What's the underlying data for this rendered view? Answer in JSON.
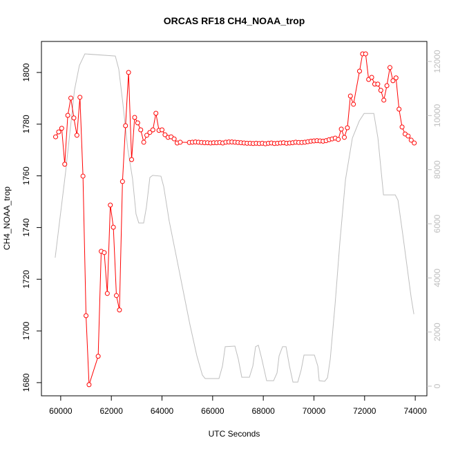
{
  "chart_data": {
    "type": "line",
    "title": "ORCAS RF18 CH4_NOAA_trop",
    "x_label": "UTC Seconds",
    "y_label": "CH4_NOAA_trop",
    "xlim": [
      59240,
      74460
    ],
    "ylim": [
      1674.9,
      1812.0
    ],
    "y2lim": [
      -357,
      12740
    ],
    "xticks": [
      60000,
      62000,
      64000,
      66000,
      68000,
      70000,
      72000,
      74000
    ],
    "yticks": [
      1680,
      1700,
      1720,
      1740,
      1760,
      1780,
      1800
    ],
    "y2ticks": [
      0,
      2000,
      4000,
      6000,
      8000,
      10000,
      12000
    ],
    "series": [
      {
        "color": "#bebebe",
        "axis": "y2",
        "marker": "none",
        "x": [
          59782,
          60191,
          60546,
          60737,
          60955,
          62156,
          62293,
          62456,
          62647,
          62838,
          62975,
          63084,
          63275,
          63384,
          63521,
          63630,
          63958,
          64067,
          64285,
          64558,
          64831,
          65104,
          65377,
          65595,
          65704,
          66250,
          66387,
          66496,
          66878,
          67014,
          67151,
          67451,
          67587,
          67696,
          67806,
          67942,
          68133,
          68406,
          68543,
          68624,
          68761,
          68897,
          69034,
          69170,
          69362,
          69498,
          69607,
          70017,
          70153,
          70207,
          70426,
          70535,
          70644,
          70836,
          71026,
          71245,
          71518,
          71790,
          71981,
          72364,
          72527,
          72746,
          72882,
          73210,
          73319,
          73510,
          73728,
          73837,
          73946
        ],
        "values": [
          4749,
          7890,
          10950,
          11850,
          12280,
          12200,
          11720,
          10440,
          8780,
          7660,
          6360,
          6030,
          6030,
          6610,
          7710,
          7790,
          7760,
          7380,
          6100,
          4830,
          3550,
          2270,
          1120,
          410,
          280,
          280,
          740,
          1460,
          1480,
          1000,
          330,
          330,
          740,
          1460,
          1510,
          1000,
          200,
          200,
          490,
          1120,
          1460,
          1460,
          740,
          150,
          150,
          610,
          1150,
          1150,
          740,
          200,
          180,
          310,
          1000,
          3040,
          5340,
          7630,
          9170,
          9800,
          10080,
          10080,
          9170,
          7070,
          7070,
          7070,
          6870,
          5590,
          4060,
          3290,
          2660
        ]
      },
      {
        "color": "#ff0000",
        "marker": "circle",
        "x": [
          59800,
          59920,
          60040,
          60160,
          60280,
          60400,
          60520,
          60640,
          60760,
          60880,
          61000,
          61120,
          61480,
          61600,
          61720,
          61840,
          61960,
          62080,
          62200,
          62320,
          62440,
          62560,
          62680,
          62800,
          62920,
          63040,
          63160,
          63280,
          63400,
          63520,
          63640,
          63760,
          63880,
          64000,
          64120,
          64240,
          64360,
          64480,
          64600,
          64720,
          65080,
          65200,
          65320,
          65440,
          65560,
          65680,
          65800,
          65920,
          66040,
          66160,
          66280,
          66400,
          66520,
          66640,
          66760,
          66880,
          67000,
          67120,
          67240,
          67360,
          67480,
          67600,
          67720,
          67840,
          67960,
          68080,
          68200,
          68320,
          68440,
          68560,
          68680,
          68800,
          68920,
          69040,
          69160,
          69280,
          69400,
          69520,
          69640,
          69760,
          69880,
          70000,
          70120,
          70240,
          70360,
          70480,
          70600,
          70720,
          70840,
          70960,
          71080,
          71200,
          71320,
          71440,
          71560,
          71800,
          71920,
          72040,
          72160,
          72280,
          72400,
          72520,
          72640,
          72760,
          72880,
          73000,
          73120,
          73240,
          73360,
          73480,
          73600,
          73720,
          73840,
          73960
        ],
        "values": [
          1775.1,
          1777.0,
          1778.4,
          1764.5,
          1783.4,
          1790.1,
          1782.4,
          1775.7,
          1790.4,
          1759.9,
          1705.9,
          1679.2,
          1690.2,
          1730.8,
          1730.3,
          1714.5,
          1748.7,
          1740.1,
          1713.7,
          1708.1,
          1757.8,
          1779.4,
          1800.0,
          1766.3,
          1782.6,
          1780.5,
          1777.8,
          1773.0,
          1775.7,
          1776.8,
          1777.8,
          1784.2,
          1777.6,
          1777.8,
          1775.9,
          1774.9,
          1775.1,
          1774.3,
          1772.7,
          1773.0,
          1772.9,
          1773.0,
          1773.1,
          1773.0,
          1772.9,
          1772.8,
          1772.8,
          1772.7,
          1772.8,
          1772.8,
          1772.9,
          1772.7,
          1773.0,
          1773.1,
          1773.1,
          1773.0,
          1772.9,
          1772.8,
          1772.7,
          1772.6,
          1772.6,
          1772.5,
          1772.6,
          1772.5,
          1772.6,
          1772.4,
          1772.6,
          1772.7,
          1772.5,
          1772.6,
          1772.7,
          1772.8,
          1772.6,
          1772.7,
          1772.8,
          1773.0,
          1772.9,
          1772.9,
          1773.0,
          1773.2,
          1773.4,
          1773.5,
          1773.6,
          1773.5,
          1773.4,
          1773.6,
          1774.0,
          1774.3,
          1774.6,
          1774.1,
          1778.1,
          1774.9,
          1778.6,
          1790.9,
          1787.7,
          1800.5,
          1807.2,
          1807.2,
          1797.3,
          1798.1,
          1795.5,
          1795.5,
          1793.1,
          1789.3,
          1794.9,
          1801.9,
          1796.8,
          1797.9,
          1785.8,
          1778.9,
          1776.2,
          1775.4,
          1773.8,
          1772.7
        ]
      }
    ]
  }
}
